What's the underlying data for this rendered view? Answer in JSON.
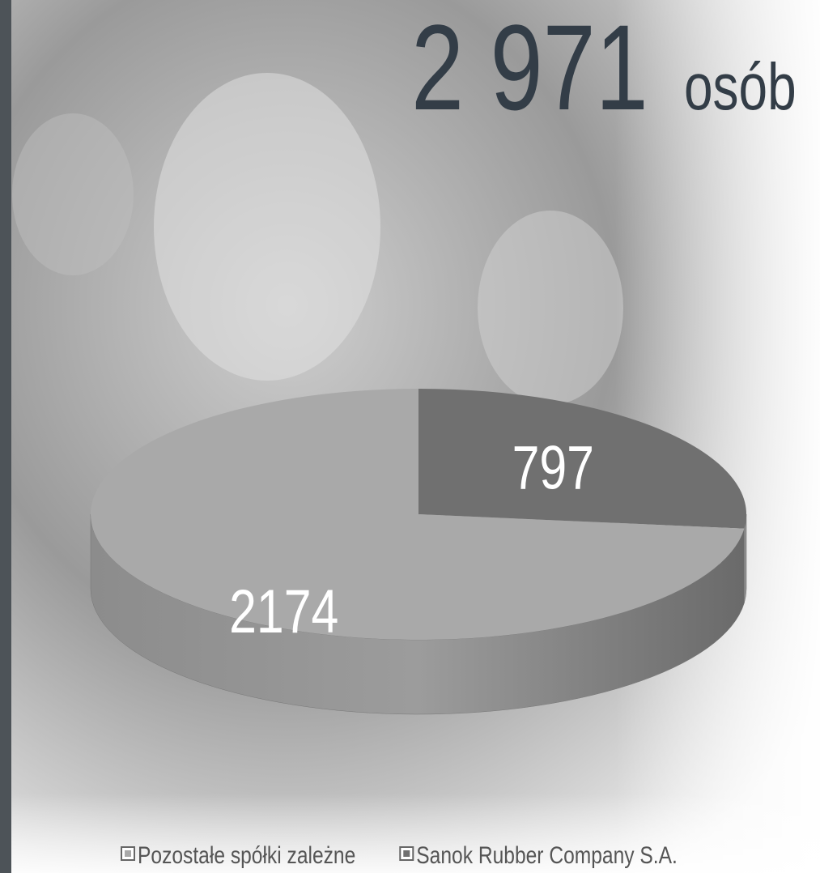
{
  "chart_data": {
    "type": "pie",
    "title": "2 971",
    "title_unit": "osób",
    "categories": [
      "Pozostałe spółki zależne",
      "Sanok Rubber Company S.A."
    ],
    "values": [
      2174,
      797
    ],
    "colors": [
      "#a9a9a9",
      "#707070"
    ],
    "start_slice": 1,
    "legend": "bottom"
  }
}
